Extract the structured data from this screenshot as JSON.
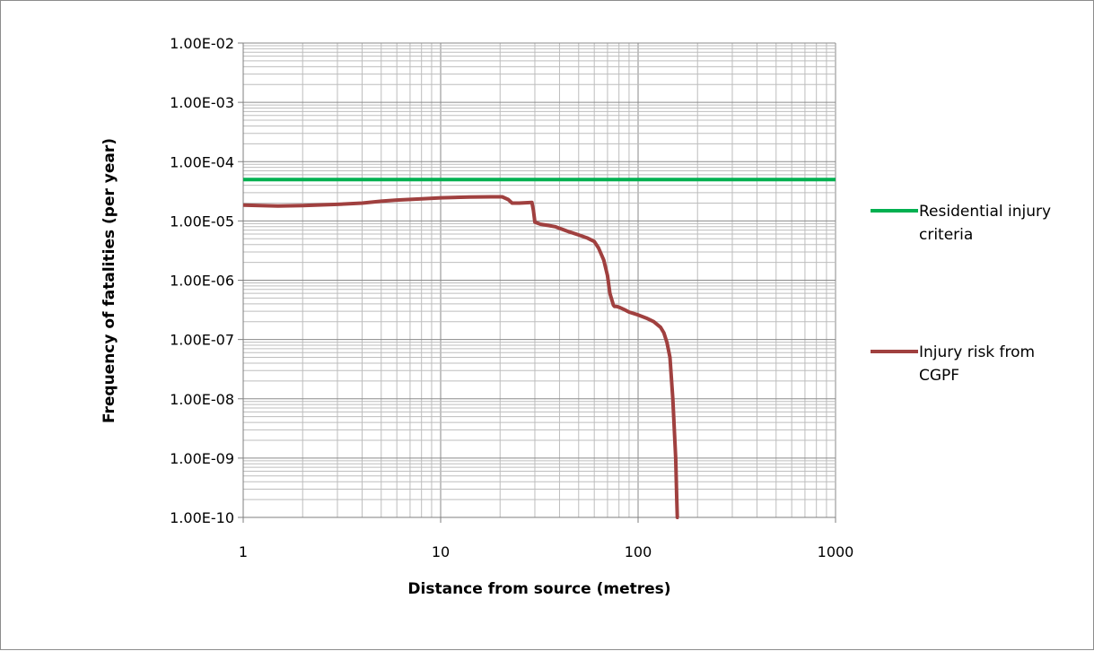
{
  "chart_data": {
    "type": "line",
    "title": "",
    "xlabel": "Distance from source (metres)",
    "ylabel": "Frequency of fatalities (per year)",
    "xscale": "log",
    "yscale": "log",
    "xlim": [
      1,
      1000
    ],
    "ylim": [
      1e-10,
      0.01
    ],
    "grid": true,
    "legend_position": "right",
    "x_tick_labels": [
      "1",
      "10",
      "100",
      "1000"
    ],
    "y_tick_labels": [
      "1.00E-10",
      "1.00E-09",
      "1.00E-08",
      "1.00E-07",
      "1.00E-06",
      "1.00E-05",
      "1.00E-04",
      "1.00E-03",
      "1.00E-02"
    ],
    "series": [
      {
        "name": "Residential injury criteria",
        "color": "#00b050",
        "x": [
          1,
          1000
        ],
        "y": [
          5e-05,
          5e-05
        ]
      },
      {
        "name": "Injury risk from CGPF",
        "color": "#a0403f",
        "x": [
          1,
          1.5,
          2,
          3,
          4,
          5,
          6,
          8,
          10,
          14,
          18,
          20.5,
          22,
          23,
          25,
          29,
          29.5,
          30,
          32,
          35,
          38,
          40,
          45,
          50,
          55,
          60,
          63,
          67,
          70,
          72,
          75,
          76,
          78,
          80,
          85,
          90,
          100,
          110,
          120,
          130,
          135,
          140,
          145,
          150,
          155,
          157,
          158,
          159,
          160,
          160.5
        ],
        "y": [
          1.85e-05,
          1.78e-05,
          1.82e-05,
          1.9e-05,
          2e-05,
          2.15e-05,
          2.25e-05,
          2.35e-05,
          2.45e-05,
          2.52e-05,
          2.55e-05,
          2.55e-05,
          2.3e-05,
          2e-05,
          2e-05,
          2.05e-05,
          1.5e-05,
          9.5e-06,
          8.8e-06,
          8.4e-06,
          8e-06,
          7.5e-06,
          6.5e-06,
          5.8e-06,
          5.2e-06,
          4.5e-06,
          3.5e-06,
          2.2e-06,
          1.2e-06,
          6e-07,
          3.8e-07,
          3.6e-07,
          3.6e-07,
          3.5e-07,
          3.2e-07,
          2.9e-07,
          2.6e-07,
          2.3e-07,
          2e-07,
          1.6e-07,
          1.3e-07,
          9e-08,
          5e-08,
          1e-08,
          1e-09,
          2e-10,
          1e-10,
          1e-10,
          1e-10,
          1e-10
        ]
      }
    ],
    "legend": [
      {
        "line1": "Residential injury",
        "line2": "criteria"
      },
      {
        "line1": "Injury risk from",
        "line2": "CGPF"
      }
    ]
  }
}
